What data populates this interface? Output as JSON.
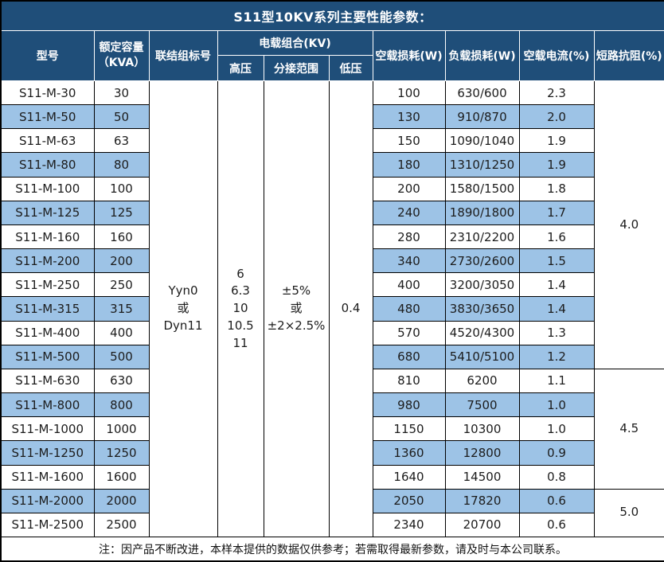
{
  "title": "S11型10KV系列主要性能参数：",
  "header": {
    "model": "型号",
    "capacity": "额定容量\n（KVA）",
    "vector_group": "联结组标号",
    "load_combination": "电载组合(KV)",
    "hv": "高压",
    "tap_range": "分接范围",
    "lv": "低压",
    "no_load_loss": "空载损耗(W)",
    "load_loss": "负载损耗(W)",
    "no_load_current": "空载电流(%)",
    "impedance": "短路抗阻(%)"
  },
  "merged": {
    "vector_group_value": "Yyn0\n或\nDyn11",
    "hv_values": "6\n6.3\n10\n10.5\n11",
    "tap_range_values": "±5%\n或\n±2×2.5%",
    "lv_value": "0.4"
  },
  "impedance_groups": [
    {
      "value": "4.0",
      "rows": 12
    },
    {
      "value": "4.5",
      "rows": 5
    },
    {
      "value": "5.0",
      "rows": 2
    }
  ],
  "rows": [
    {
      "model": "S11-M-30",
      "capacity": "30",
      "no_load_loss": "100",
      "load_loss": "630/600",
      "no_load_current": "2.3"
    },
    {
      "model": "S11-M-50",
      "capacity": "50",
      "no_load_loss": "130",
      "load_loss": "910/870",
      "no_load_current": "2.0"
    },
    {
      "model": "S11-M-63",
      "capacity": "63",
      "no_load_loss": "150",
      "load_loss": "1090/1040",
      "no_load_current": "1.9"
    },
    {
      "model": "S11-M-80",
      "capacity": "80",
      "no_load_loss": "180",
      "load_loss": "1310/1250",
      "no_load_current": "1.9"
    },
    {
      "model": "S11-M-100",
      "capacity": "100",
      "no_load_loss": "200",
      "load_loss": "1580/1500",
      "no_load_current": "1.8"
    },
    {
      "model": "S11-M-125",
      "capacity": "125",
      "no_load_loss": "240",
      "load_loss": "1890/1800",
      "no_load_current": "1.7"
    },
    {
      "model": "S11-M-160",
      "capacity": "160",
      "no_load_loss": "280",
      "load_loss": "2310/2200",
      "no_load_current": "1.6"
    },
    {
      "model": "S11-M-200",
      "capacity": "200",
      "no_load_loss": "340",
      "load_loss": "2730/2600",
      "no_load_current": "1.5"
    },
    {
      "model": "S11-M-250",
      "capacity": "250",
      "no_load_loss": "400",
      "load_loss": "3200/3050",
      "no_load_current": "1.4"
    },
    {
      "model": "S11-M-315",
      "capacity": "315",
      "no_load_loss": "480",
      "load_loss": "3830/3650",
      "no_load_current": "1.4"
    },
    {
      "model": "S11-M-400",
      "capacity": "400",
      "no_load_loss": "570",
      "load_loss": "4520/4300",
      "no_load_current": "1.3"
    },
    {
      "model": "S11-M-500",
      "capacity": "500",
      "no_load_loss": "680",
      "load_loss": "5410/5100",
      "no_load_current": "1.2"
    },
    {
      "model": "S11-M-630",
      "capacity": "630",
      "no_load_loss": "810",
      "load_loss": "6200",
      "no_load_current": "1.1"
    },
    {
      "model": "S11-M-800",
      "capacity": "800",
      "no_load_loss": "980",
      "load_loss": "7500",
      "no_load_current": "1.0"
    },
    {
      "model": "S11-M-1000",
      "capacity": "1000",
      "no_load_loss": "1150",
      "load_loss": "10300",
      "no_load_current": "1.0"
    },
    {
      "model": "S11-M-1250",
      "capacity": "1250",
      "no_load_loss": "1360",
      "load_loss": "12800",
      "no_load_current": "0.9"
    },
    {
      "model": "S11-M-1600",
      "capacity": "1600",
      "no_load_loss": "1640",
      "load_loss": "14500",
      "no_load_current": "0.8"
    },
    {
      "model": "S11-M-2000",
      "capacity": "2000",
      "no_load_loss": "2050",
      "load_loss": "17820",
      "no_load_current": "0.6"
    },
    {
      "model": "S11-M-2500",
      "capacity": "2500",
      "no_load_loss": "2340",
      "load_loss": "20700",
      "no_load_current": "0.6"
    }
  ],
  "footer_note": "注：因产品不断改进，本样本提供的数据仅供参考；若需取得最新参数，请及时与本公司联系。",
  "colors": {
    "header_bg": "#1F4E79",
    "header_text": "#FFFFFF",
    "row_alt_bg": "#9DC3E6",
    "border_dark": "#000000",
    "border_light": "#FFFFFF"
  }
}
